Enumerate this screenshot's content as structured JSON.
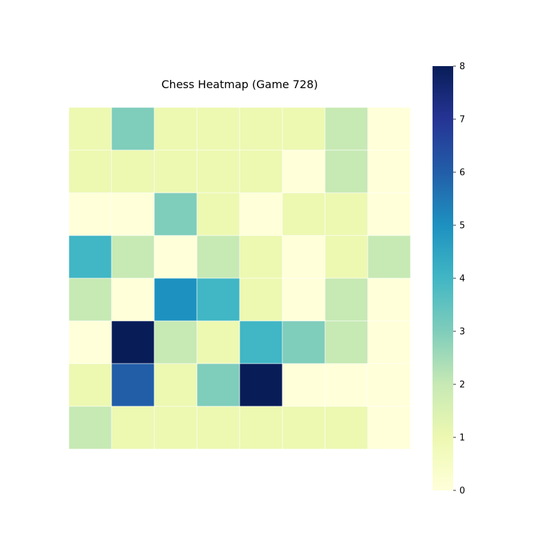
{
  "chart_data": {
    "type": "heatmap",
    "title": "Chess Heatmap (Game 728)",
    "xlabel": "",
    "ylabel": "",
    "rows": 8,
    "cols": 8,
    "values": [
      [
        1,
        3,
        1,
        1,
        1,
        1,
        2,
        0
      ],
      [
        1,
        1,
        1,
        1,
        1,
        0,
        2,
        0
      ],
      [
        0,
        0,
        3,
        1,
        0,
        1,
        1,
        0
      ],
      [
        4,
        2,
        0,
        2,
        1,
        0,
        1,
        2
      ],
      [
        2,
        0,
        5,
        4,
        1,
        0,
        2,
        0
      ],
      [
        0,
        8,
        2,
        1,
        4,
        3,
        2,
        0
      ],
      [
        1,
        6,
        1,
        3,
        8,
        0,
        0,
        0
      ],
      [
        2,
        1,
        1,
        1,
        1,
        1,
        1,
        0
      ]
    ],
    "vmin": 0,
    "vmax": 8,
    "colormap": "YlGnBu",
    "colorbar": {
      "ticks": [
        0,
        1,
        2,
        3,
        4,
        5,
        6,
        7,
        8
      ],
      "tick_labels": [
        "0",
        "1",
        "2",
        "3",
        "4",
        "5",
        "6",
        "7",
        "8"
      ]
    },
    "grid_line_color": "#ffffff"
  }
}
